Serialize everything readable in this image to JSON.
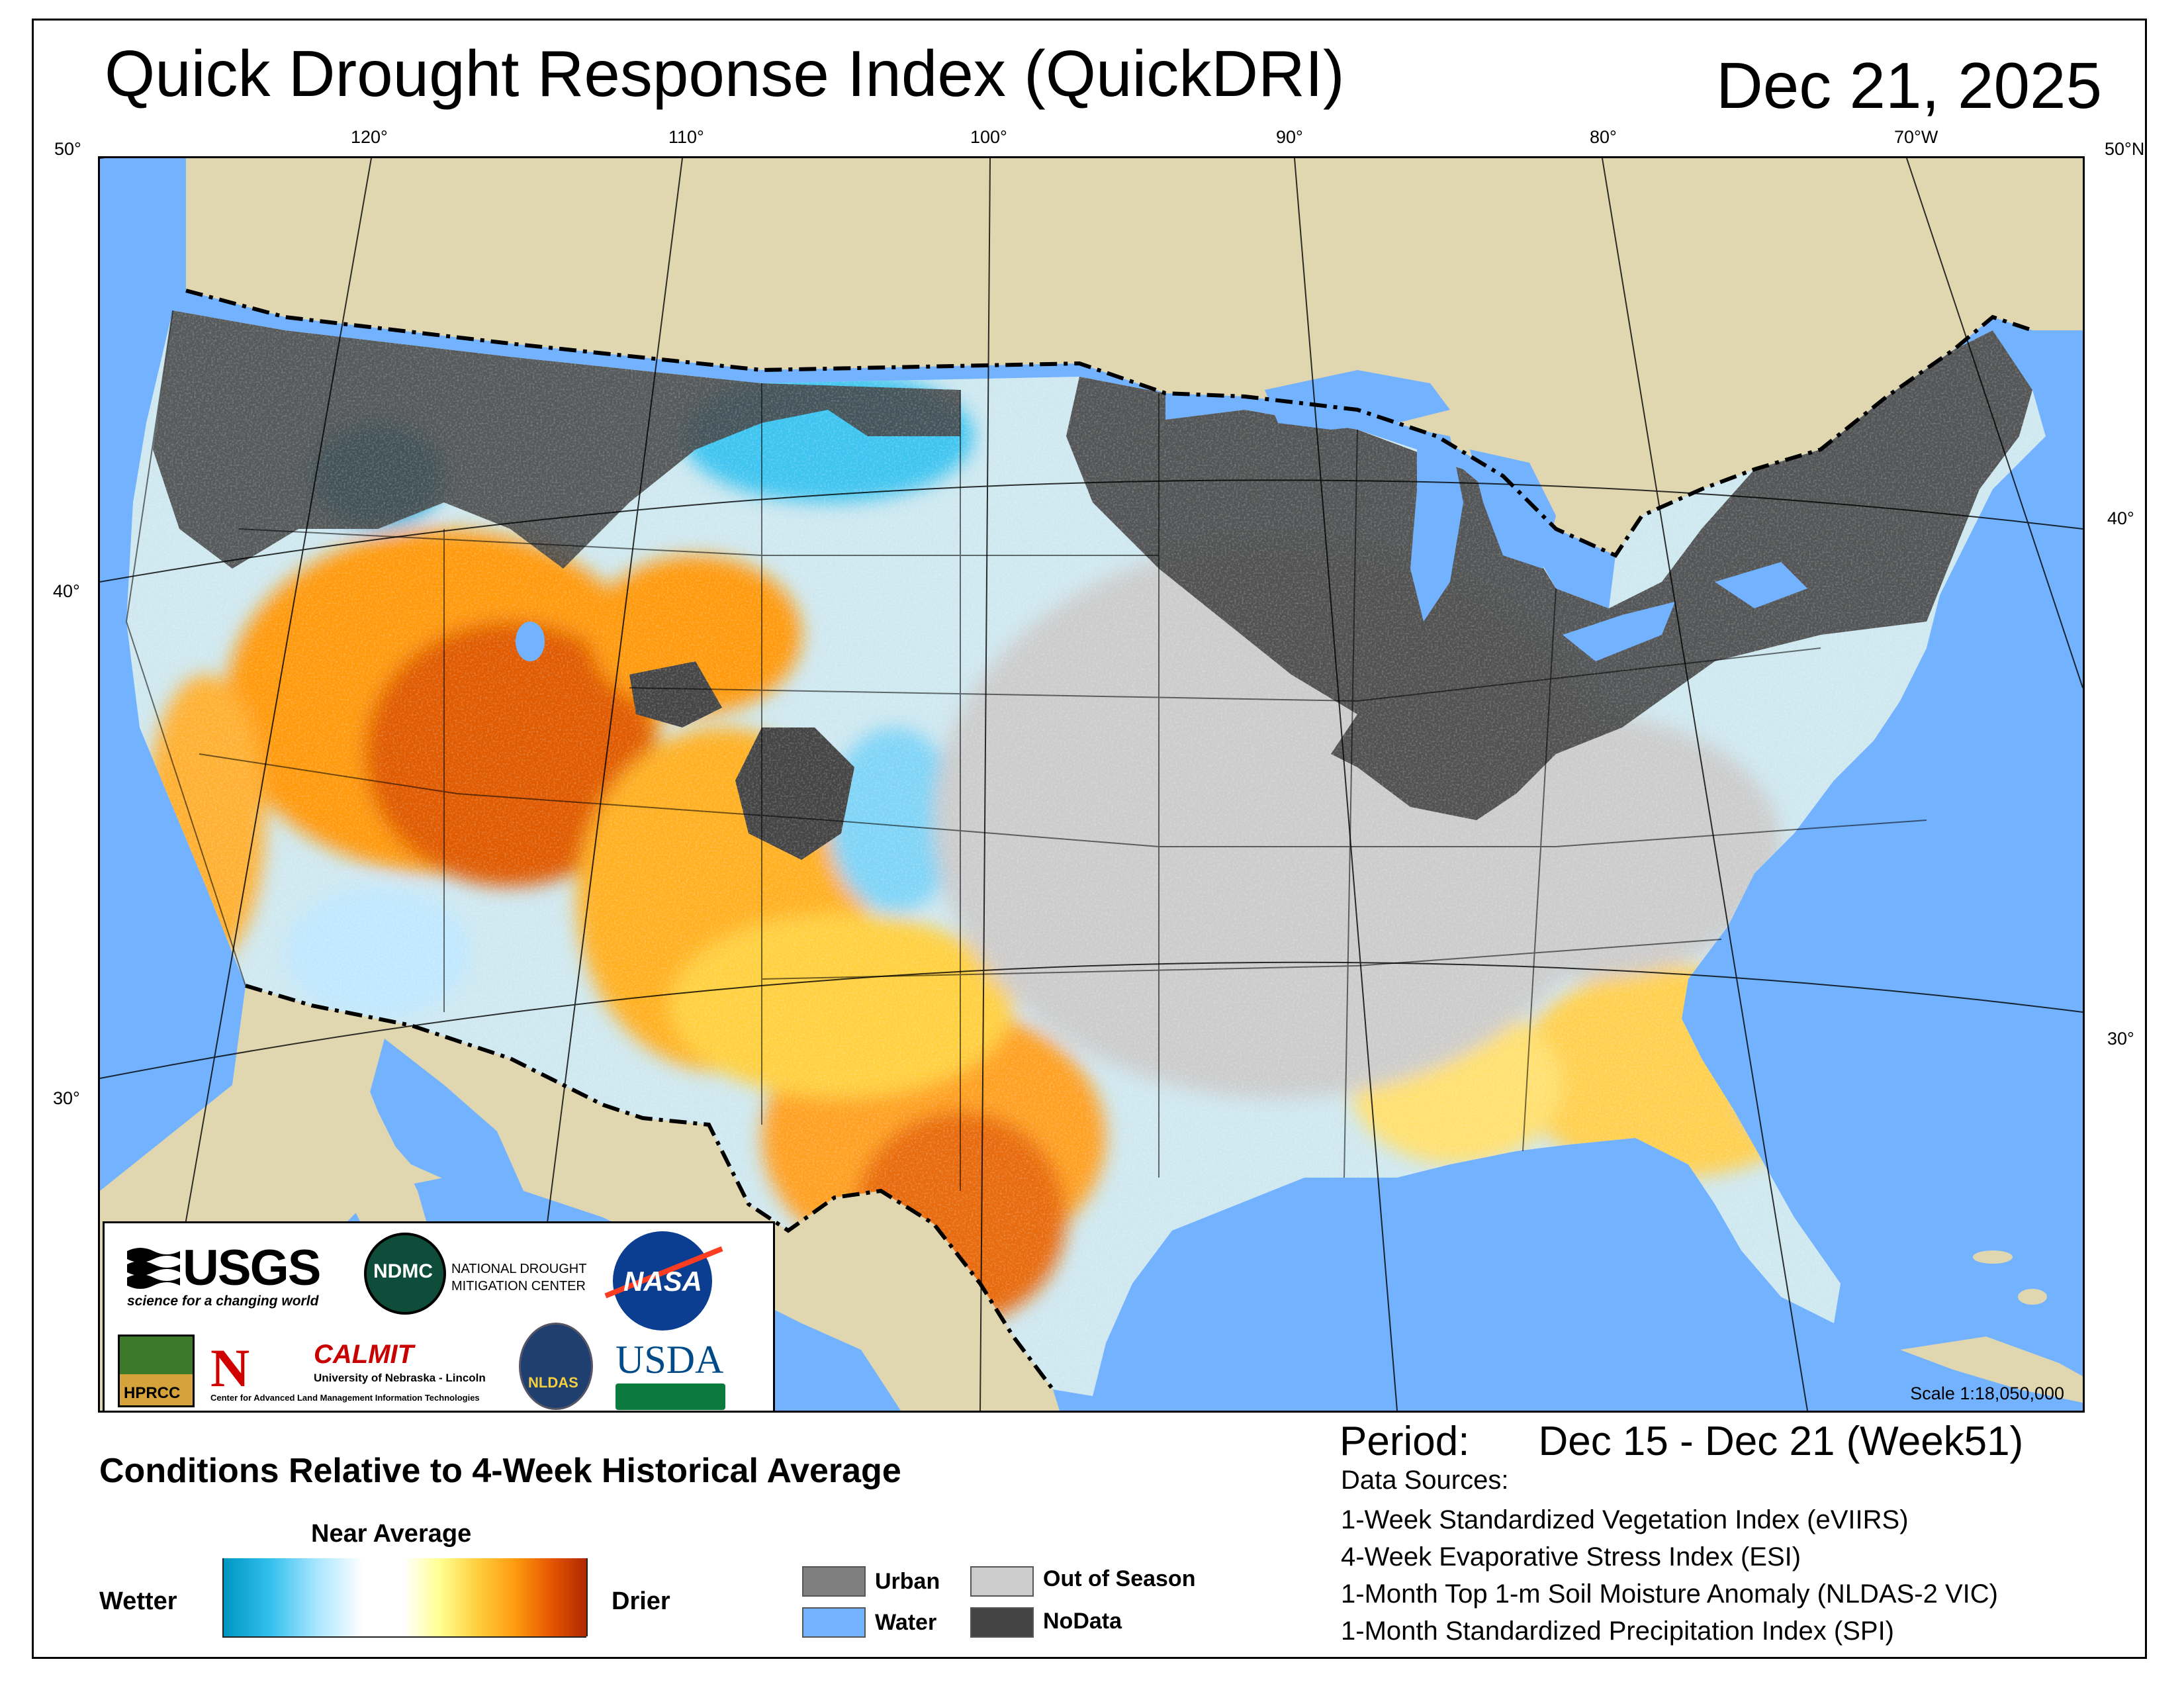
{
  "header": {
    "title": "Quick Drought Response Index (QuickDRI)",
    "date": "Dec 21, 2025"
  },
  "graticule": {
    "top_labels": [
      "50°",
      "120°",
      "110°",
      "100°",
      "90°",
      "80°",
      "70°W",
      "50°N"
    ],
    "left_labels": [
      "40°",
      "30°"
    ],
    "right_labels": [
      "40°",
      "30°"
    ]
  },
  "map": {
    "scale": "Scale 1:18,050,000"
  },
  "logos": {
    "usgs": "USGS",
    "usgs_tagline": "science for a changing world",
    "ndmc": "NDMC",
    "ndmc_name_1": "NATIONAL DROUGHT",
    "ndmc_name_2": "MITIGATION CENTER",
    "nasa": "NASA",
    "hprcc": "HPRCC",
    "unl_mark": "N",
    "calmit": "CALMIT",
    "calmit_sub": "University of Nebraska - Lincoln",
    "calmit_sub2": "Center for Advanced Land Management Information Technologies",
    "nldas": "NLDAS",
    "usda": "USDA"
  },
  "legend": {
    "title": "Conditions Relative to 4-Week Historical Average",
    "near_average": "Near Average",
    "wetter": "Wetter",
    "drier": "Drier",
    "categories": [
      {
        "label": "Urban",
        "color": "#7f7f7f"
      },
      {
        "label": "Water",
        "color": "#73b2ff"
      },
      {
        "label": "Out of Season",
        "color": "#cccccc"
      },
      {
        "label": "NoData",
        "color": "#444444"
      }
    ]
  },
  "info": {
    "period_label": "Period:",
    "period_value": "Dec 15 - Dec 21 (Week51)",
    "sources_title": "Data Sources:",
    "sources": [
      "1-Week Standardized Vegetation Index (eVIIRS)",
      "4-Week Evaporative Stress Index (ESI)",
      "1-Month Top 1-m Soil Moisture Anomaly (NLDAS-2 VIC)",
      "1-Month Standardized Precipitation Index (SPI)"
    ]
  },
  "colors": {
    "ocean": "#73b2ff",
    "land_outside": "#e0d6b0",
    "nodata": "#444444",
    "out_of_season": "#cccccc"
  }
}
